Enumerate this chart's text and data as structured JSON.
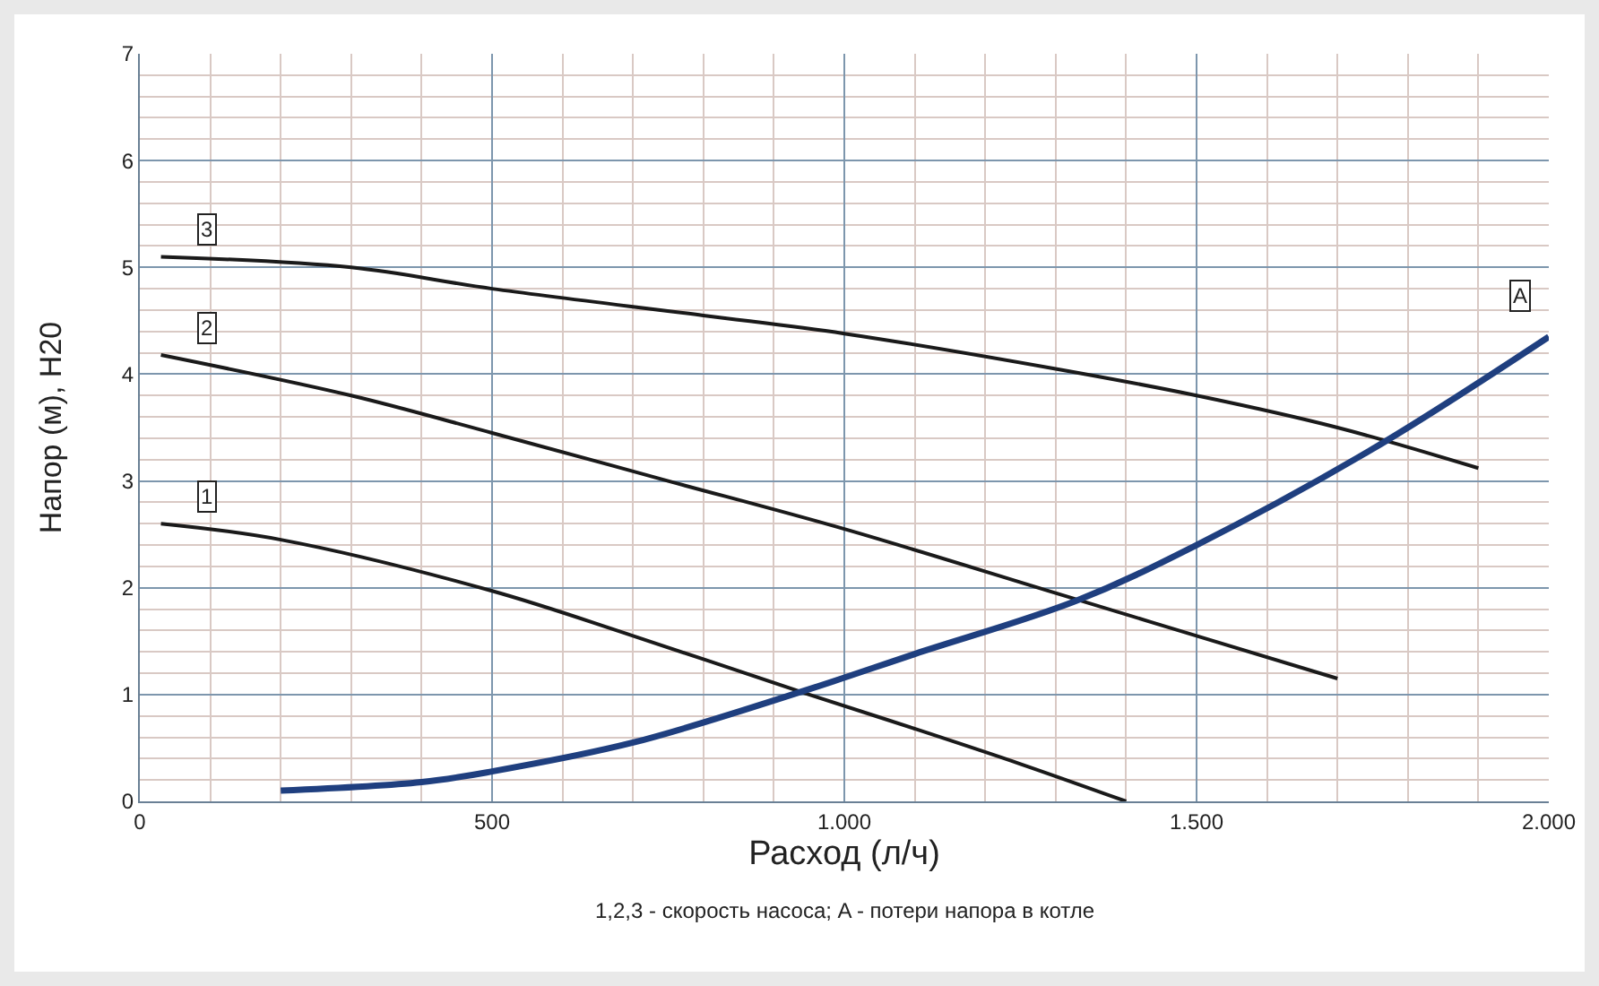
{
  "chart_data": {
    "type": "line",
    "xlabel": "Расход (л/ч)",
    "ylabel": "Напор (м), H20",
    "annotations": [
      "1,2,3 - скорость насоса; A - потери напора в котле"
    ],
    "xlim": [
      0,
      2000
    ],
    "ylim": [
      0,
      7
    ],
    "xticks": [
      0,
      500,
      {
        "value": 1000,
        "label": "1.000"
      },
      {
        "value": 1500,
        "label": "1.500"
      },
      {
        "value": 2000,
        "label": "2.000"
      }
    ],
    "yticks": [
      0,
      1,
      2,
      3,
      4,
      5,
      6,
      7
    ],
    "grid": true,
    "legend": false,
    "marker": "none",
    "line_style": "solid",
    "series": [
      {
        "name": "1",
        "color": "#1a1a1a",
        "x": [
          30,
          200,
          500,
          700,
          950,
          1100,
          1250,
          1400
        ],
        "values": [
          2.6,
          2.45,
          1.97,
          1.55,
          1.0,
          0.68,
          0.35,
          0.0
        ]
      },
      {
        "name": "2",
        "color": "#1a1a1a",
        "x": [
          30,
          300,
          500,
          750,
          1000,
          1300,
          1500,
          1700
        ],
        "values": [
          4.18,
          3.8,
          3.45,
          3.0,
          2.55,
          1.95,
          1.55,
          1.15
        ]
      },
      {
        "name": "3",
        "color": "#1a1a1a",
        "x": [
          30,
          300,
          500,
          800,
          1000,
          1300,
          1500,
          1700,
          1900
        ],
        "values": [
          5.1,
          5.0,
          4.8,
          4.55,
          4.38,
          4.05,
          3.8,
          3.5,
          3.12
        ]
      },
      {
        "name": "A",
        "color": "#1f3f7f",
        "x": [
          200,
          400,
          500,
          700,
          950,
          1100,
          1330,
          1500,
          1750,
          2000
        ],
        "values": [
          0.1,
          0.18,
          0.28,
          0.55,
          1.05,
          1.38,
          1.88,
          2.4,
          3.3,
          4.35
        ]
      }
    ]
  }
}
